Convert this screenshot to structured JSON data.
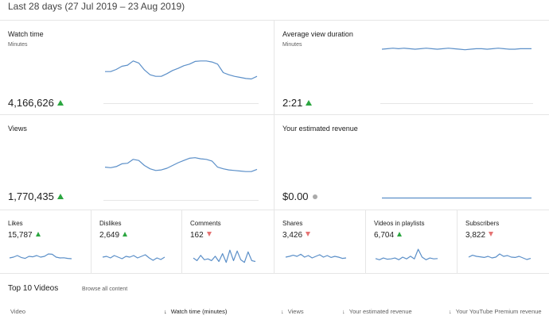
{
  "header": {
    "date_range": "Last 28 days (27 Jul 2019 – 23 Aug 2019)"
  },
  "cards": {
    "watch_time": {
      "title": "Watch time",
      "subtitle": "Minutes",
      "value": "4,166,626",
      "trend": "up",
      "series": [
        0.52,
        0.52,
        0.56,
        0.62,
        0.64,
        0.72,
        0.68,
        0.55,
        0.46,
        0.43,
        0.43,
        0.48,
        0.54,
        0.58,
        0.63,
        0.66,
        0.71,
        0.72,
        0.72,
        0.7,
        0.66,
        0.5,
        0.46,
        0.43,
        0.41,
        0.39,
        0.38,
        0.43
      ]
    },
    "avg_view_duration": {
      "title": "Average view duration",
      "subtitle": "Minutes",
      "value": "2:21",
      "trend": "up",
      "series": [
        0.94,
        0.95,
        0.96,
        0.95,
        0.96,
        0.95,
        0.94,
        0.95,
        0.96,
        0.95,
        0.94,
        0.95,
        0.96,
        0.95,
        0.94,
        0.93,
        0.94,
        0.95,
        0.95,
        0.94,
        0.95,
        0.96,
        0.95,
        0.94,
        0.94,
        0.95,
        0.95,
        0.95
      ]
    },
    "views": {
      "title": "Views",
      "subtitle": "",
      "value": "1,770,435",
      "trend": "up",
      "series": [
        0.52,
        0.51,
        0.53,
        0.58,
        0.59,
        0.66,
        0.64,
        0.55,
        0.49,
        0.46,
        0.47,
        0.5,
        0.55,
        0.6,
        0.64,
        0.68,
        0.69,
        0.67,
        0.66,
        0.63,
        0.52,
        0.49,
        0.47,
        0.46,
        0.45,
        0.44,
        0.44,
        0.48
      ]
    },
    "revenue": {
      "title": "Your estimated revenue",
      "subtitle": "",
      "value": "$0.00",
      "trend": "neutral",
      "series": [
        0.02,
        0.02,
        0.02,
        0.02,
        0.02,
        0.02,
        0.02,
        0.02,
        0.02,
        0.02,
        0.02,
        0.02,
        0.02,
        0.02,
        0.02,
        0.02,
        0.02,
        0.02,
        0.02,
        0.02,
        0.02,
        0.02,
        0.02,
        0.02,
        0.02,
        0.02,
        0.02,
        0.02
      ]
    }
  },
  "metrics": [
    {
      "title": "Likes",
      "value": "15,787",
      "trend": "up",
      "series": [
        0.45,
        0.5,
        0.6,
        0.48,
        0.42,
        0.55,
        0.52,
        0.6,
        0.5,
        0.55,
        0.7,
        0.68,
        0.5,
        0.45,
        0.46,
        0.42,
        0.4
      ]
    },
    {
      "title": "Dislikes",
      "value": "2,649",
      "trend": "up",
      "series": [
        0.5,
        0.55,
        0.45,
        0.6,
        0.5,
        0.4,
        0.55,
        0.5,
        0.6,
        0.45,
        0.55,
        0.65,
        0.45,
        0.3,
        0.45,
        0.35,
        0.5
      ]
    },
    {
      "title": "Comments",
      "value": "162",
      "trend": "down",
      "series": [
        0.45,
        0.3,
        0.6,
        0.35,
        0.4,
        0.3,
        0.55,
        0.25,
        0.7,
        0.2,
        0.9,
        0.3,
        0.85,
        0.35,
        0.2,
        0.8,
        0.3,
        0.25
      ]
    },
    {
      "title": "Shares",
      "value": "3,426",
      "trend": "down",
      "series": [
        0.5,
        0.55,
        0.62,
        0.55,
        0.68,
        0.5,
        0.6,
        0.45,
        0.55,
        0.65,
        0.5,
        0.6,
        0.48,
        0.55,
        0.5,
        0.42,
        0.45
      ]
    },
    {
      "title": "Videos in playlists",
      "value": "6,704",
      "trend": "up",
      "series": [
        0.42,
        0.35,
        0.45,
        0.38,
        0.4,
        0.45,
        0.35,
        0.5,
        0.4,
        0.55,
        0.4,
        0.95,
        0.5,
        0.35,
        0.45,
        0.4,
        0.42
      ]
    },
    {
      "title": "Subscribers",
      "value": "3,822",
      "trend": "down",
      "series": [
        0.5,
        0.62,
        0.55,
        0.52,
        0.48,
        0.55,
        0.45,
        0.5,
        0.7,
        0.55,
        0.6,
        0.5,
        0.48,
        0.55,
        0.45,
        0.35,
        0.42
      ]
    }
  ],
  "top10": {
    "title": "Top 10 Videos",
    "browse_label": "Browse all content",
    "columns": [
      "Video",
      "Watch time (minutes)",
      "Views",
      "Your estimated revenue",
      "Your YouTube Premium revenue"
    ]
  },
  "colors": {
    "line": "#5b8fc8",
    "up": "#2ba640",
    "down": "#e57373",
    "neutral": "#aaaaaa",
    "border": "#e6e6e6"
  }
}
